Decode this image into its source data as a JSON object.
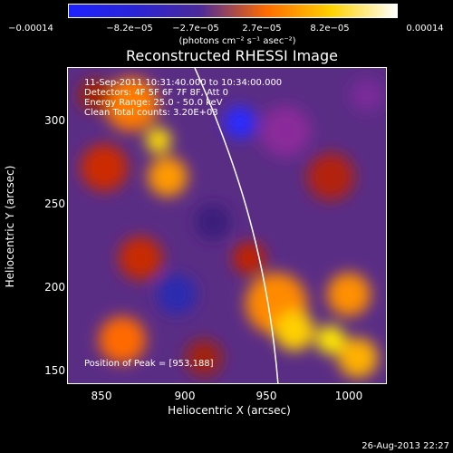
{
  "colorbar": {
    "ticks": [
      "−0.00014",
      "−8.2e−05",
      "−2.7e−05",
      "2.7e−05",
      "8.2e−05",
      "0.00014"
    ],
    "unit": "(photons cm⁻² s⁻¹ asec⁻²)",
    "colors": [
      "#1f22ff",
      "#2a24d8",
      "#4b2a9a",
      "#ff6a00",
      "#ffd200",
      "#ffffff"
    ]
  },
  "title": "Reconstructed RHESSI Image",
  "info": {
    "line1": "11-Sep-2011 10:31:40.000 to 10:34:00.000",
    "line2": "Detectors: 4F 5F 6F 7F 8F, Att 0",
    "line3": "Energy Range: 25.0 - 50.0 keV",
    "line4": "Clean     Total counts: 3.20E+03",
    "peak": "Position of Peak = [953,188]"
  },
  "axes": {
    "xlabel": "Heliocentric X (arcsec)",
    "ylabel": "Heliocentric Y (arcsec)",
    "xticks": [
      "850",
      "900",
      "950",
      "1000"
    ],
    "yticks": [
      "300",
      "250",
      "200",
      "150"
    ]
  },
  "footer": "26-Aug-2013 22:27",
  "chart_data": {
    "type": "heatmap",
    "title": "Reconstructed RHESSI Image",
    "xlabel": "Heliocentric X (arcsec)",
    "ylabel": "Heliocentric Y (arcsec)",
    "xlim": [
      830,
      1022
    ],
    "ylim": [
      140,
      330
    ],
    "colorbar_range": [
      -0.00014,
      0.00014
    ],
    "peak": [
      953,
      188
    ]
  }
}
